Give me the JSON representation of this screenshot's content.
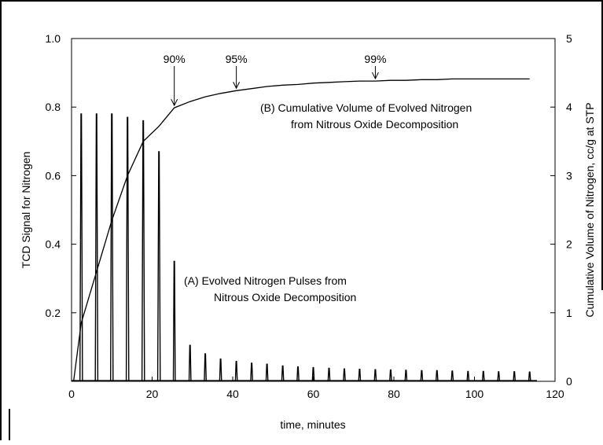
{
  "chart_data": {
    "type": "line",
    "xlabel": "time, minutes",
    "ylabel_left": "TCD Signal for Nitrogen",
    "ylabel_right": "Cumulative Volume of Nitrogen, cc/g at STP",
    "xlim": [
      0,
      120
    ],
    "ylim_left": [
      0,
      1.0
    ],
    "ylim_right": [
      0,
      5
    ],
    "x_ticks": [
      "0",
      "20",
      "40",
      "60",
      "80",
      "100",
      "120"
    ],
    "y_left_ticks": [
      "0.2",
      "0.4",
      "0.6",
      "0.8",
      "1.0"
    ],
    "y_right_ticks": [
      "0",
      "1",
      "2",
      "3",
      "4",
      "5"
    ],
    "grid": false,
    "legend": "none",
    "series": [
      {
        "axis": "left",
        "style": "pulses",
        "x": [
          2.4,
          6.2,
          10.0,
          13.9,
          17.8,
          21.7,
          25.5,
          29.4,
          33.2,
          37.0,
          40.9,
          44.7,
          48.5,
          52.4,
          56.2,
          60.0,
          63.9,
          67.7,
          71.5,
          75.4,
          79.2,
          83.0,
          86.9,
          90.7,
          94.5,
          98.4,
          102.2,
          106.0,
          109.9,
          113.7
        ],
        "values": [
          0.78,
          0.78,
          0.78,
          0.77,
          0.76,
          0.67,
          0.35,
          0.105,
          0.08,
          0.065,
          0.058,
          0.053,
          0.05,
          0.045,
          0.042,
          0.04,
          0.038,
          0.036,
          0.035,
          0.034,
          0.033,
          0.032,
          0.031,
          0.031,
          0.03,
          0.029,
          0.029,
          0.028,
          0.028,
          0.027
        ]
      },
      {
        "axis": "right",
        "style": "line",
        "x": [
          0.5,
          2.4,
          6.2,
          10.0,
          13.9,
          17.8,
          21.7,
          25.5,
          29.4,
          33.2,
          37.0,
          40.9,
          44.7,
          48.5,
          52.4,
          56.2,
          60.0,
          63.9,
          67.7,
          71.5,
          75.4,
          79.2,
          83.0,
          86.9,
          90.7,
          94.5,
          98.4,
          102.2,
          106.0,
          109.9,
          113.7
        ],
        "values": [
          0.0,
          0.85,
          1.6,
          2.35,
          3.0,
          3.5,
          3.72,
          3.99,
          4.08,
          4.15,
          4.2,
          4.24,
          4.27,
          4.3,
          4.32,
          4.33,
          4.35,
          4.36,
          4.37,
          4.38,
          4.38,
          4.39,
          4.39,
          4.4,
          4.4,
          4.41,
          4.41,
          4.41,
          4.41,
          4.41,
          4.41
        ]
      }
    ],
    "annotations": [
      {
        "text": "90%",
        "x": 25.5,
        "y_right": 3.99
      },
      {
        "text": "95%",
        "x": 40.9,
        "y_right": 4.24
      },
      {
        "text": "99%",
        "x": 75.4,
        "y_right": 4.38
      }
    ],
    "labels": {
      "b_line1": "(B)  Cumulative Volume of Evolved Nitrogen",
      "b_line2": "from Nitrous Oxide Decomposition",
      "a_line1": "(A)   Evolved Nitrogen Pulses from",
      "a_line2": "Nitrous Oxide Decomposition"
    }
  }
}
